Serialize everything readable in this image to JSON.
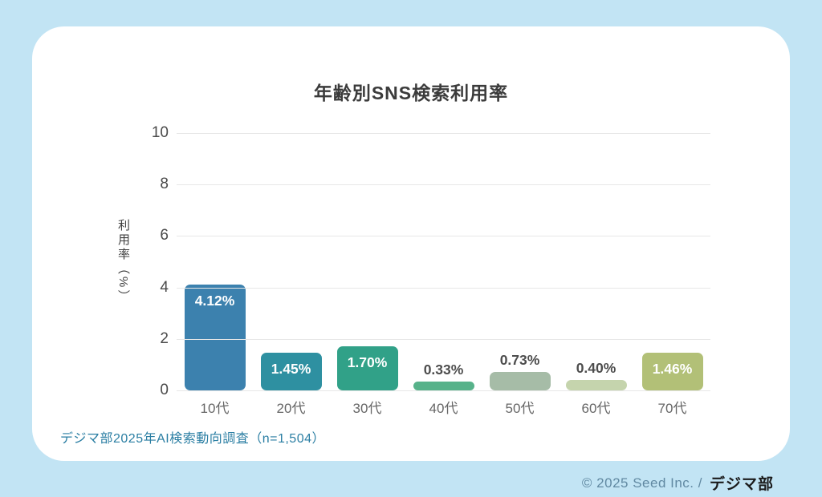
{
  "page": {
    "background_color": "#c2e4f4",
    "card_color": "#ffffff"
  },
  "chart_data": {
    "type": "bar",
    "title": "年齢別SNS検索利用率",
    "xlabel": "",
    "ylabel": "利用率（%）",
    "categories": [
      "10代",
      "20代",
      "30代",
      "40代",
      "50代",
      "60代",
      "70代"
    ],
    "values": [
      4.12,
      1.45,
      1.7,
      0.33,
      0.73,
      0.4,
      1.46
    ],
    "value_labels": [
      "4.12%",
      "1.45%",
      "1.70%",
      "0.33%",
      "0.73%",
      "0.40%",
      "1.46%"
    ],
    "bar_colors": [
      "#3c81ae",
      "#2e90a1",
      "#31a188",
      "#57b28a",
      "#a6bca7",
      "#c5d4ad",
      "#b2c077"
    ],
    "yticks": [
      0,
      2,
      4,
      6,
      8,
      10
    ],
    "ylim": [
      0,
      10
    ],
    "grid": true,
    "legend": false
  },
  "source_note": "デジマ部2025年AI検索動向調査（n=1,504）",
  "footer": {
    "copyright": "© 2025 Seed Inc. /",
    "logo_text": "デジマ部"
  }
}
